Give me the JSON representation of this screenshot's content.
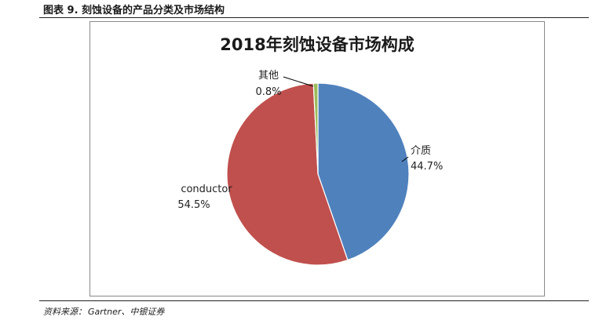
{
  "figure_title": "图表 9. 刻蚀设备的产品分类及市场结构",
  "source": {
    "label": "资料来源：",
    "text": "Gartner、中银证券"
  },
  "chart_data": {
    "type": "pie",
    "title": "2018年刻蚀设备市场构成",
    "slices": [
      {
        "name": "介质",
        "value": 44.7,
        "label": "44.7%",
        "color": "#4f81bd"
      },
      {
        "name": "conductor",
        "value": 54.5,
        "label": "54.5%",
        "color": "#c0504d"
      },
      {
        "name": "其他",
        "value": 0.8,
        "label": "0.8%",
        "color": "#9bbb59"
      }
    ]
  }
}
